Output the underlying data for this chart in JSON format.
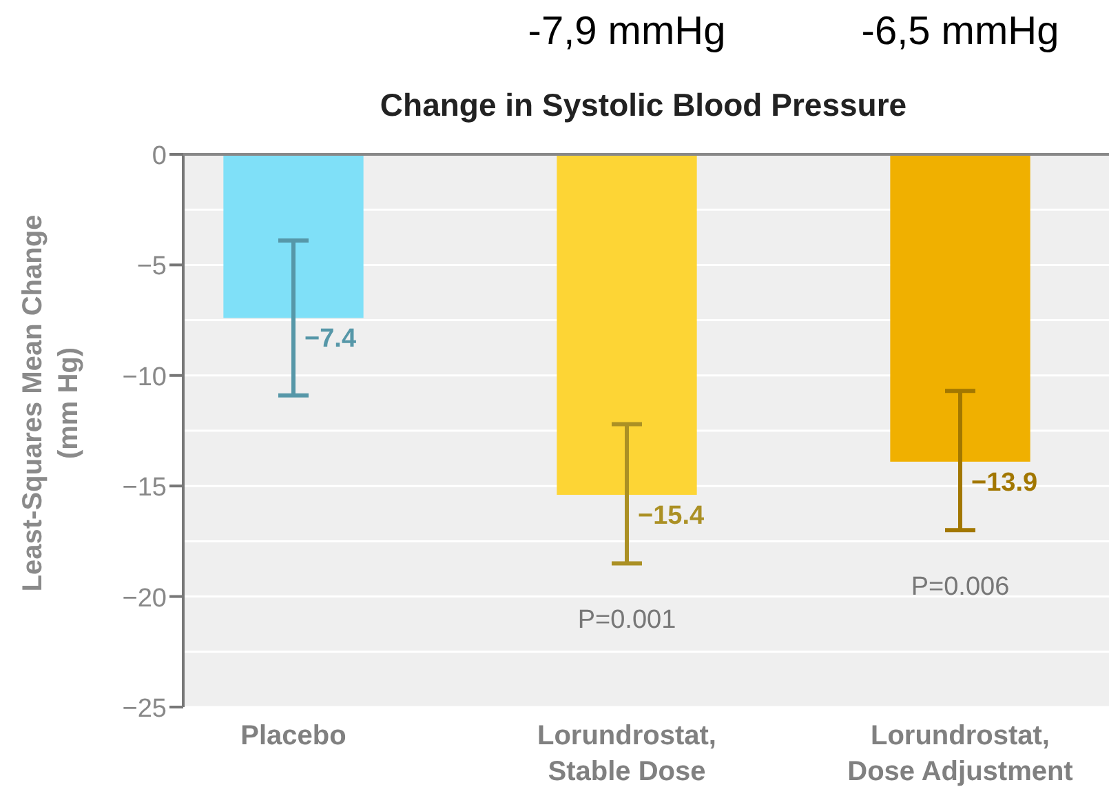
{
  "chart_data": {
    "type": "bar",
    "title": "Change in Systolic Blood Pressure",
    "ylabel": "Least-Squares Mean Change\n(mm Hg)",
    "categories": [
      "Placebo",
      "Lorundrostat,\nStable Dose",
      "Lorundrostat,\nDose Adjustment"
    ],
    "values": [
      -7.4,
      -15.4,
      -13.9
    ],
    "colors": [
      "#7fe0f8",
      "#fdd535",
      "#f0b000"
    ],
    "errors": [
      [
        -10.9,
        -3.9
      ],
      [
        -18.5,
        -12.2
      ],
      [
        -17.0,
        -10.7
      ]
    ],
    "value_labels": [
      "−7.4",
      "−15.4",
      "−13.9"
    ],
    "annotations": [
      "P=0.001",
      "P=0.006",
      "-7,9 mmHg",
      "-6,5 mmHg"
    ],
    "ylim": [
      -25,
      0
    ],
    "yticks": [
      0,
      -5,
      -10,
      -15,
      -20,
      -25,
      {
        "value": -2.5,
        "label": null
      },
      {
        "value": -7.5,
        "label": null
      },
      {
        "value": -12.5,
        "label": null
      },
      {
        "value": -17.5,
        "label": null
      },
      {
        "value": -22.5,
        "label": null
      }
    ],
    "grid": "y"
  }
}
